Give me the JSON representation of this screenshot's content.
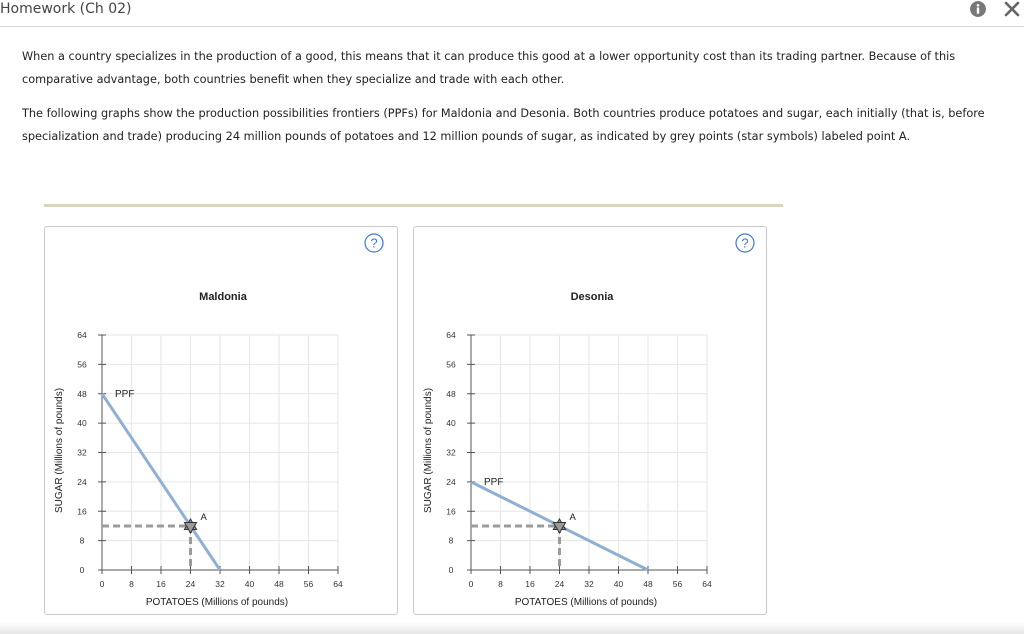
{
  "window": {
    "title": "Homework (Ch 02)",
    "info_icon": "info-icon",
    "close_icon": "close-icon"
  },
  "intro": {
    "paragraph1": "When a country specializes in the production of a good, this means that it can produce this good at a lower opportunity cost than its trading partner. Because of this comparative advantage, both countries benefit when they specialize and trade with each other.",
    "paragraph2": "The following graphs show the production possibilities frontiers (PPFs) for Maldonia and Desonia. Both countries produce potatoes and sugar, each initially (that is, before specialization and trade) producing 24 million pounds of potatoes and 12 million pounds of sugar, as indicated by grey points (star symbols) labeled point A."
  },
  "help_symbol": "?",
  "colors": {
    "ppf_line": "#8fb0d4",
    "grid": "#e6e6e6",
    "dashed": "#9b9b9b",
    "star": "#9a9a9a",
    "help": "#3f79c9"
  },
  "chart_data": [
    {
      "type": "line",
      "title": "Maldonia",
      "xlabel": "POTATOES (Millions of pounds)",
      "ylabel": "SUGAR (Millions of pounds)",
      "xlim": [
        0,
        64
      ],
      "ylim": [
        0,
        64
      ],
      "xticks": [
        0,
        8,
        16,
        24,
        32,
        40,
        48,
        56,
        64
      ],
      "yticks": [
        0,
        8,
        16,
        24,
        32,
        40,
        48,
        56,
        64
      ],
      "grid": true,
      "series": [
        {
          "name": "PPF",
          "x": [
            0,
            32
          ],
          "y": [
            48,
            0
          ],
          "label": "PPF"
        }
      ],
      "points": [
        {
          "label": "A",
          "x": 24,
          "y": 12,
          "symbol": "star"
        }
      ]
    },
    {
      "type": "line",
      "title": "Desonia",
      "xlabel": "POTATOES (Millions of pounds)",
      "ylabel": "SUGAR (Millions of pounds)",
      "xlim": [
        0,
        64
      ],
      "ylim": [
        0,
        64
      ],
      "xticks": [
        0,
        8,
        16,
        24,
        32,
        40,
        48,
        56,
        64
      ],
      "yticks": [
        0,
        8,
        16,
        24,
        32,
        40,
        48,
        56,
        64
      ],
      "grid": true,
      "series": [
        {
          "name": "PPF",
          "x": [
            0,
            48
          ],
          "y": [
            24,
            0
          ],
          "label": "PPF"
        }
      ],
      "points": [
        {
          "label": "A",
          "x": 24,
          "y": 12,
          "symbol": "star"
        }
      ]
    }
  ]
}
